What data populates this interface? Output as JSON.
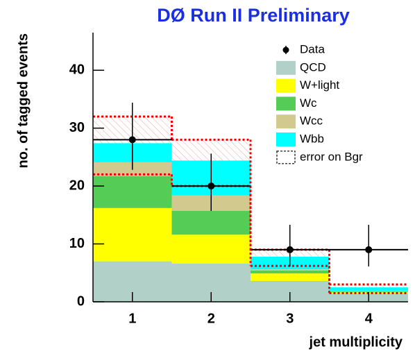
{
  "chart_data": {
    "type": "histogram",
    "title": "DØ Run II Preliminary",
    "xlabel": "jet multiplicity",
    "ylabel": "no. of tagged events",
    "bins": [
      0.5,
      1.5,
      2.5,
      3.5,
      4.5
    ],
    "xlim": [
      0.5,
      4.5
    ],
    "xticks": [
      1,
      2,
      3,
      4
    ],
    "ylim": [
      0,
      46.5
    ],
    "yticks": [
      0,
      10,
      20,
      30,
      40
    ],
    "series": [
      {
        "name": "QCD",
        "color": "#b0d0c8",
        "values": [
          7.0,
          6.6,
          3.6,
          1.4
        ]
      },
      {
        "name": "W+light",
        "color": "#ffff00",
        "values": [
          9.2,
          5.0,
          1.3,
          0.3
        ]
      },
      {
        "name": "Wc",
        "color": "#55cc55",
        "values": [
          5.5,
          4.1,
          0.5,
          0.1
        ]
      },
      {
        "name": "Wcc",
        "color": "#d2c98e",
        "values": [
          2.4,
          2.7,
          0.2,
          0.1
        ]
      },
      {
        "name": "Wbb",
        "color": "#00ffff",
        "values": [
          3.3,
          6.0,
          2.2,
          0.6
        ]
      }
    ],
    "data": {
      "name": "Data",
      "color": "#000000",
      "values": [
        28,
        20,
        9,
        9
      ],
      "errors_low": [
        5.2,
        4.3,
        2.9,
        2.9
      ],
      "errors_high": [
        6.4,
        5.6,
        4.3,
        4.3
      ]
    },
    "band": {
      "name": "error on Bgr",
      "color": "#ee0000",
      "low": [
        22,
        20,
        6.2,
        1.5
      ],
      "high": [
        32,
        28,
        9,
        3
      ]
    }
  }
}
